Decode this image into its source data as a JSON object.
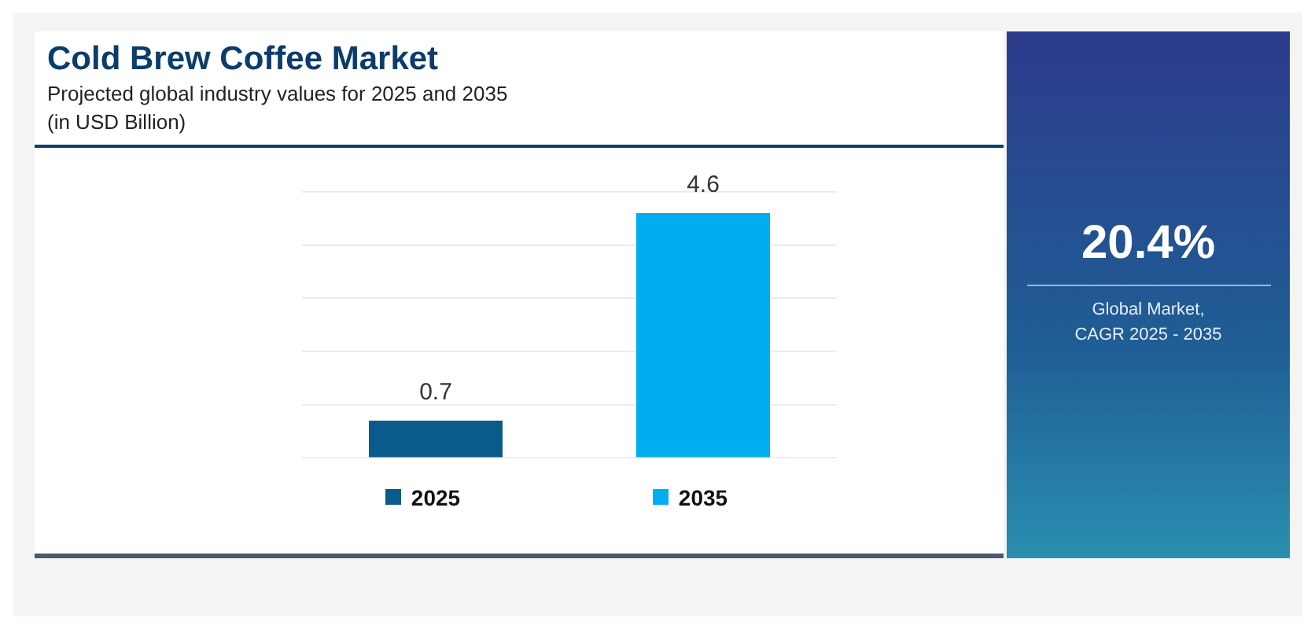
{
  "chart_data": {
    "type": "bar",
    "title": "Cold Brew Coffee Market",
    "subtitle": "Projected global industry values for 2025 and 2035\n(in USD Billion)",
    "categories": [
      "2025",
      "2035"
    ],
    "values": [
      0.7,
      4.6
    ],
    "colors": [
      "#0b5a8c",
      "#00aeef"
    ],
    "ylim": [
      0,
      5
    ],
    "yticks": [
      {
        "value": 0,
        "label": null
      },
      {
        "value": 1,
        "label": null
      },
      {
        "value": 2,
        "label": null
      },
      {
        "value": 3,
        "label": null
      },
      {
        "value": 4,
        "label": null
      },
      {
        "value": 5,
        "label": null
      }
    ],
    "tick_labels": "x",
    "grid": "y",
    "data_labels": true,
    "annotations": [
      "20.4%",
      "Global Market,\nCAGR 2025 - 2035"
    ]
  }
}
